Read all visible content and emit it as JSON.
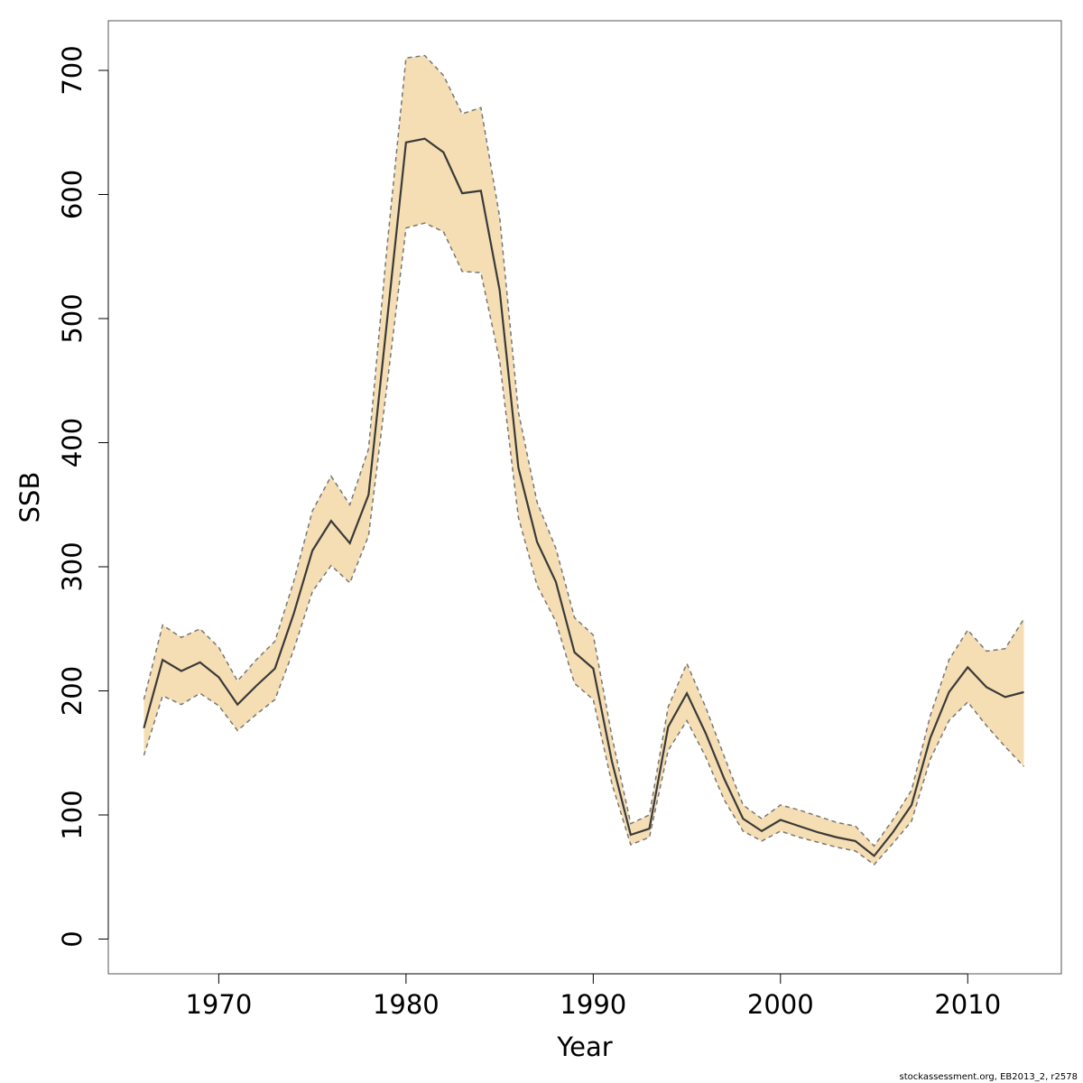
{
  "chart_data": {
    "type": "line",
    "xlabel": "Year",
    "ylabel": "SSB",
    "xlim": [
      1964.1,
      2015.0
    ],
    "ylim": [
      -28,
      740
    ],
    "x_ticks": [
      1970,
      1980,
      1990,
      2000,
      2010
    ],
    "y_ticks": [
      0,
      100,
      200,
      300,
      400,
      500,
      600,
      700
    ],
    "grid": false,
    "legend": "none",
    "colors": {
      "band": "#f5deb3",
      "line": "#3a3a3a",
      "bound": "#777777",
      "frame": "#555555"
    },
    "x": [
      1966,
      1967,
      1968,
      1969,
      1970,
      1971,
      1972,
      1973,
      1974,
      1975,
      1976,
      1977,
      1978,
      1979,
      1980,
      1981,
      1982,
      1983,
      1984,
      1985,
      1986,
      1987,
      1988,
      1989,
      1990,
      1991,
      1992,
      1993,
      1994,
      1995,
      1996,
      1997,
      1998,
      1999,
      2000,
      2001,
      2002,
      2003,
      2004,
      2005,
      2006,
      2007,
      2008,
      2009,
      2010,
      2011,
      2012,
      2013
    ],
    "series": [
      {
        "role": "estimate",
        "values": [
          170,
          225,
          216,
          223,
          211,
          189,
          204,
          218,
          262,
          313,
          337,
          319,
          358,
          500,
          642,
          645,
          634,
          601,
          603,
          523,
          380,
          320,
          288,
          231,
          218,
          143,
          84,
          89,
          171,
          198,
          166,
          129,
          97,
          87,
          96,
          91,
          86,
          82,
          79,
          67,
          86,
          108,
          162,
          199,
          219,
          203,
          195,
          199
        ]
      },
      {
        "role": "upper",
        "values": [
          193,
          253,
          243,
          250,
          235,
          208,
          225,
          240,
          288,
          345,
          373,
          350,
          395,
          560,
          710,
          712,
          696,
          665,
          670,
          582,
          425,
          352,
          315,
          259,
          245,
          163,
          93,
          100,
          187,
          222,
          187,
          147,
          108,
          97,
          108,
          104,
          99,
          94,
          91,
          75,
          96,
          120,
          180,
          225,
          249,
          232,
          234,
          258
        ]
      },
      {
        "role": "lower",
        "values": [
          148,
          196,
          189,
          198,
          188,
          168,
          181,
          193,
          233,
          280,
          301,
          287,
          325,
          448,
          573,
          577,
          570,
          538,
          537,
          466,
          340,
          285,
          256,
          206,
          193,
          125,
          76,
          82,
          152,
          176,
          147,
          112,
          87,
          79,
          87,
          82,
          78,
          74,
          71,
          60,
          77,
          95,
          145,
          176,
          191,
          172,
          155,
          139
        ]
      }
    ]
  },
  "footer_note": "stockassessment.org, EB2013_2, r2578"
}
